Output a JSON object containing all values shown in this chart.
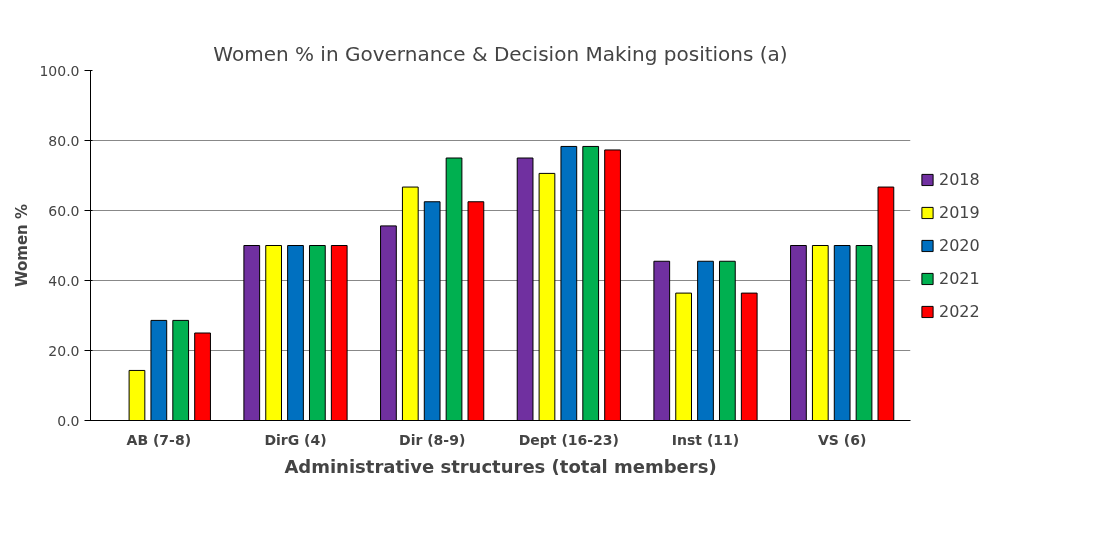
{
  "chart_data": {
    "type": "bar",
    "title": "Women % in Governance & Decision Making positions (a)",
    "xlabel": "Administrative structures (total members)",
    "ylabel": "Women %",
    "categories": [
      "AB (7-8)",
      "DirG (4)",
      "Dir (8-9)",
      "Dept (16-23)",
      "Inst (11)",
      "VS (6)"
    ],
    "series": [
      {
        "name": "2018",
        "color": "#7030a0",
        "values": [
          null,
          50.0,
          55.6,
          75.0,
          45.5,
          50.0
        ]
      },
      {
        "name": "2019",
        "color": "#ffff00",
        "values": [
          14.3,
          50.0,
          66.7,
          70.6,
          36.4,
          50.0
        ]
      },
      {
        "name": "2020",
        "color": "#0070c0",
        "values": [
          28.6,
          50.0,
          62.5,
          78.3,
          45.5,
          50.0
        ]
      },
      {
        "name": "2021",
        "color": "#00b050",
        "values": [
          28.6,
          50.0,
          75.0,
          78.3,
          45.5,
          50.0
        ]
      },
      {
        "name": "2022",
        "color": "#ff0000",
        "values": [
          25.0,
          50.0,
          62.5,
          77.3,
          36.4,
          66.7
        ]
      }
    ],
    "ylim": [
      0,
      100
    ],
    "yticks": [
      {
        "value": 0,
        "label": "0.0"
      },
      {
        "value": 20,
        "label": "20.0"
      },
      {
        "value": 40,
        "label": "40.0"
      },
      {
        "value": 60,
        "label": "60.0"
      },
      {
        "value": 80,
        "label": "80.0"
      },
      {
        "value": 100,
        "label": "100.0"
      }
    ],
    "grid": "y",
    "legend": "right"
  }
}
